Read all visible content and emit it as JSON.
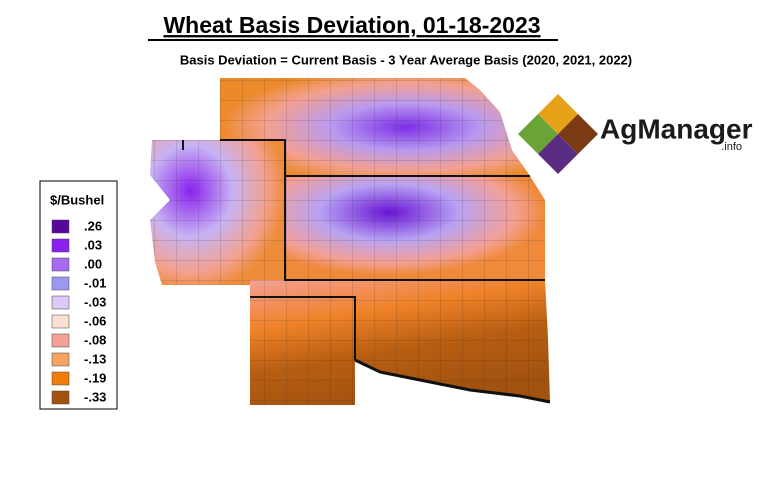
{
  "title": "Wheat Basis Deviation, 01-18-2023",
  "subtitle": "Basis Deviation = Current Basis - 3 Year Average Basis (2020, 2021, 2022)",
  "legend": {
    "title": "$/Bushel",
    "items": [
      {
        "label": ".26",
        "color": "#55089a"
      },
      {
        "label": ".03",
        "color": "#8a22ee"
      },
      {
        "label": ".00",
        "color": "#a56cf2"
      },
      {
        "label": "-.01",
        "color": "#9a9af2"
      },
      {
        "label": "-.03",
        "color": "#dcc9f5"
      },
      {
        "label": "-.06",
        "color": "#fbdfd2"
      },
      {
        "label": "-.08",
        "color": "#f4a096"
      },
      {
        "label": "-.13",
        "color": "#f8a35f"
      },
      {
        "label": "-.19",
        "color": "#f07d0a"
      },
      {
        "label": "-.33",
        "color": "#a2520f"
      }
    ]
  },
  "logo": {
    "name": "AgManager",
    "suffix": ".info"
  }
}
